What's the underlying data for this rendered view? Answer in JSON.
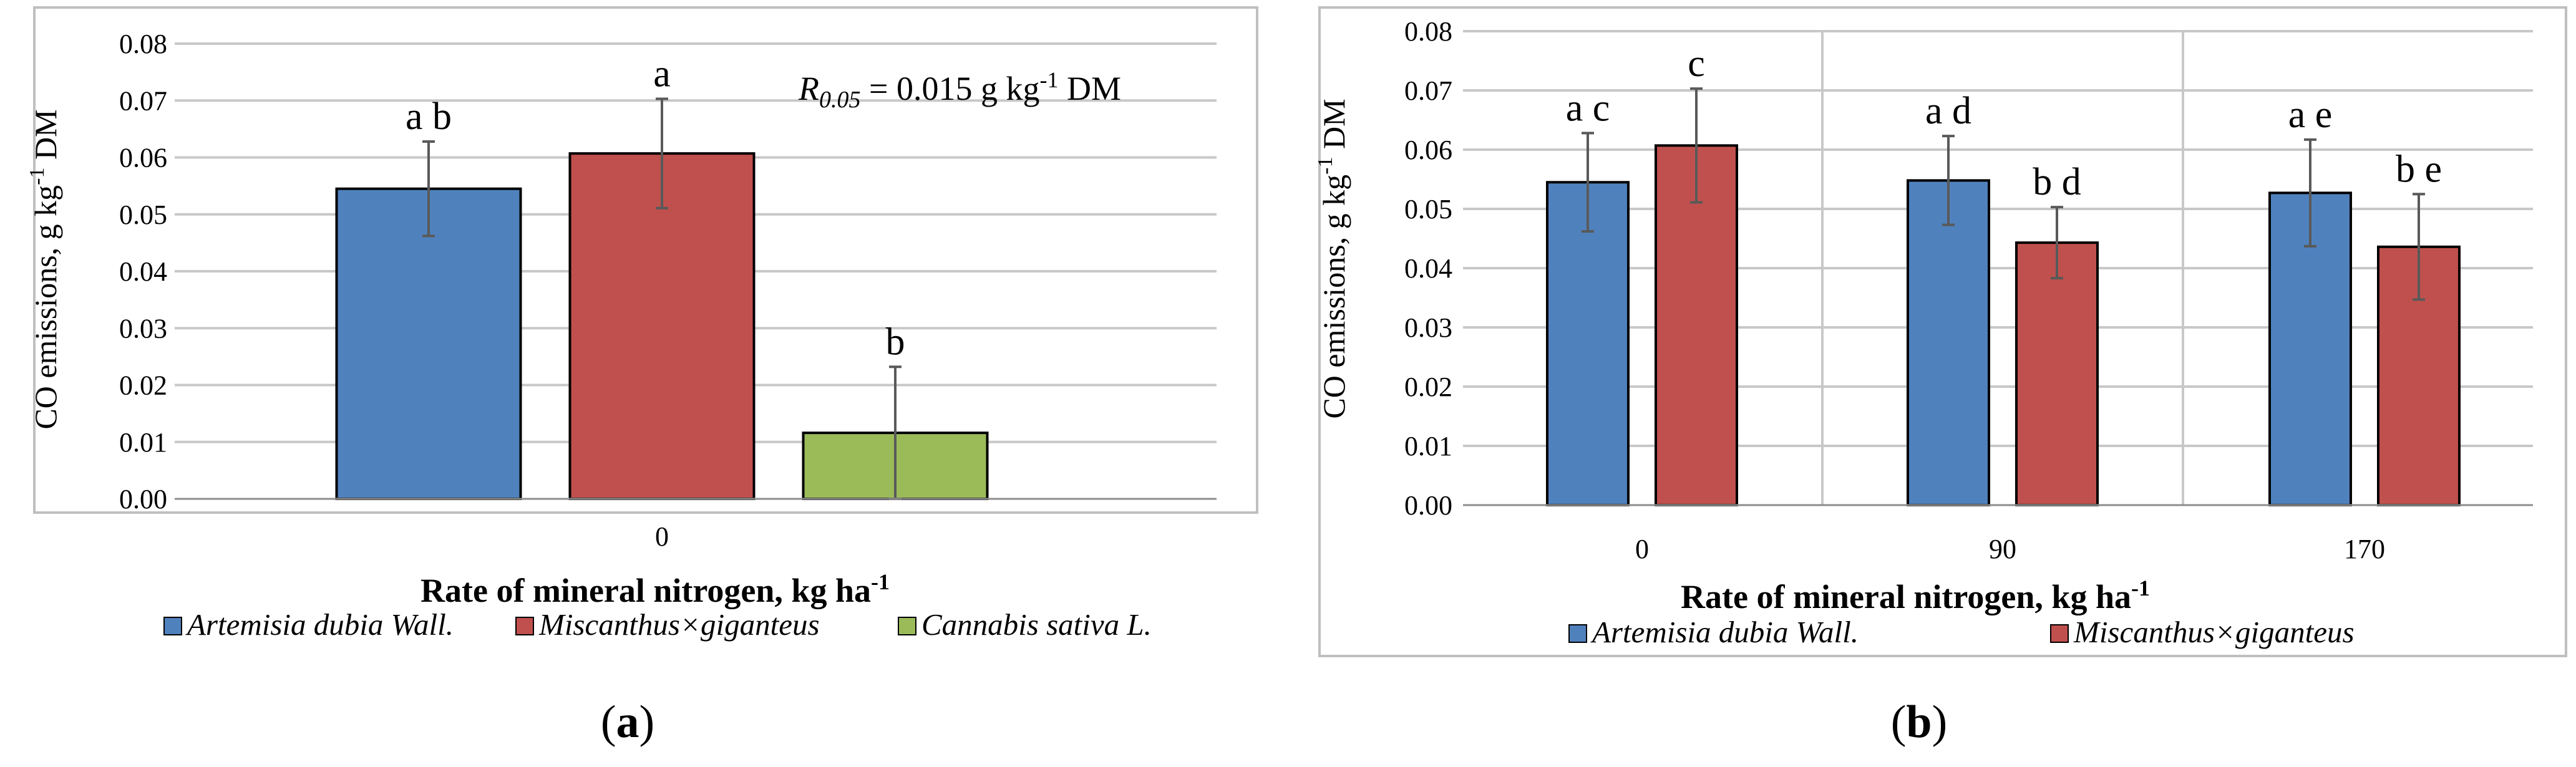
{
  "colors": {
    "artemisia": "#4F81BD",
    "miscanthus": "#C0504D",
    "cannabis": "#9BBB59",
    "error_bar": "#595959",
    "grid": "#c8c8c8"
  },
  "panels": {
    "a": {
      "open": "(",
      "letter": "a",
      "close": ")"
    },
    "b": {
      "open": "(",
      "letter": "b",
      "close": ")"
    }
  },
  "chart_data": [
    {
      "type": "bar",
      "panel": "a",
      "categories": [
        "0"
      ],
      "ylabel_main": "CO emissions, g kg",
      "ylabel_sup": "-1",
      "ylabel_unit": " DM",
      "xlabel_main": "Rate of mineral nitrogen, kg ha",
      "xlabel_sup": "-1",
      "ylim": [
        0,
        0.08
      ],
      "yticks": [
        "0.00",
        "0.01",
        "0.02",
        "0.03",
        "0.04",
        "0.05",
        "0.06",
        "0.07",
        "0.08"
      ],
      "ytick_values": [
        0,
        0.01,
        0.02,
        0.03,
        0.04,
        0.05,
        0.06,
        0.07,
        0.08
      ],
      "grid": "horizontal",
      "legend": "bottom",
      "annotation": {
        "symbol": "R",
        "subscript": "0.05",
        "value_text": " = 0.015 g kg",
        "sup": "-1",
        "unit_tail": " DM"
      },
      "series": [
        {
          "name": "Artemisia dubia Wall.",
          "color": "#4F81BD",
          "values": [
            0.0545
          ],
          "error": [
            0.0083
          ],
          "letters": [
            "a b"
          ]
        },
        {
          "name": "Miscanthus×giganteus",
          "color": "#C0504D",
          "values": [
            0.0607
          ],
          "error": [
            0.0096
          ],
          "letters": [
            "a"
          ]
        },
        {
          "name": "Cannabis sativa L.",
          "color": "#9BBB59",
          "values": [
            0.0116
          ],
          "error": [
            0.0116
          ],
          "letters": [
            "b"
          ]
        }
      ]
    },
    {
      "type": "bar",
      "panel": "b",
      "categories": [
        "0",
        "90",
        "170"
      ],
      "ylabel_main": "CO emissions, g kg",
      "ylabel_sup": "-1",
      "ylabel_unit": " DM",
      "xlabel_main": "Rate of mineral nitrogen, kg ha",
      "xlabel_sup": "-1",
      "ylim": [
        0,
        0.08
      ],
      "yticks": [
        "0.00",
        "0.01",
        "0.02",
        "0.03",
        "0.04",
        "0.05",
        "0.06",
        "0.07",
        "0.08"
      ],
      "ytick_values": [
        0,
        0.01,
        0.02,
        0.03,
        0.04,
        0.05,
        0.06,
        0.07,
        0.08
      ],
      "grid": "horizontal and vertical",
      "legend": "bottom",
      "series": [
        {
          "name": "Artemisia dubia Wall.",
          "color": "#4F81BD",
          "values": [
            0.0545,
            0.0548,
            0.0527
          ],
          "error": [
            0.0083,
            0.0075,
            0.009
          ],
          "letters": [
            "a c",
            "a d",
            "a e"
          ]
        },
        {
          "name": "Miscanthus×giganteus",
          "color": "#C0504D",
          "values": [
            0.0607,
            0.0443,
            0.0436
          ],
          "error": [
            0.0096,
            0.006,
            0.0089
          ],
          "letters": [
            "c",
            "b d",
            "b e"
          ]
        }
      ]
    }
  ]
}
